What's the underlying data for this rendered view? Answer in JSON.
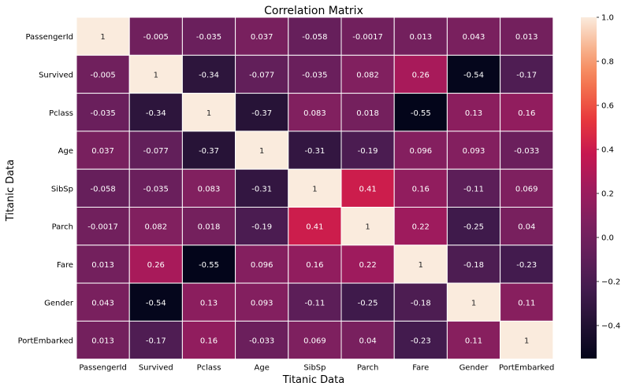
{
  "chart_data": {
    "type": "heatmap",
    "title": "Correlation Matrix",
    "xlabel": "Titanic Data",
    "ylabel": "Titanic Data",
    "x_categories": [
      "PassengerId",
      "Survived",
      "Pclass",
      "Age",
      "SibSp",
      "Parch",
      "Fare",
      "Gender",
      "PortEmbarked"
    ],
    "y_categories": [
      "PassengerId",
      "Survived",
      "Pclass",
      "Age",
      "SibSp",
      "Parch",
      "Fare",
      "Gender",
      "PortEmbarked"
    ],
    "values": [
      [
        1,
        -0.005,
        -0.035,
        0.037,
        -0.058,
        -0.0017,
        0.013,
        0.043,
        0.013
      ],
      [
        -0.005,
        1,
        -0.34,
        -0.077,
        -0.035,
        0.082,
        0.26,
        -0.54,
        -0.17
      ],
      [
        -0.035,
        -0.34,
        1,
        -0.37,
        0.083,
        0.018,
        -0.55,
        0.13,
        0.16
      ],
      [
        0.037,
        -0.077,
        -0.37,
        1,
        -0.31,
        -0.19,
        0.096,
        0.093,
        -0.033
      ],
      [
        -0.058,
        -0.035,
        0.083,
        -0.31,
        1,
        0.41,
        0.16,
        -0.11,
        0.069
      ],
      [
        -0.0017,
        0.082,
        0.018,
        -0.19,
        0.41,
        1,
        0.22,
        -0.25,
        0.04
      ],
      [
        0.013,
        0.26,
        -0.55,
        0.096,
        0.16,
        0.22,
        1,
        -0.18,
        -0.23
      ],
      [
        0.043,
        -0.54,
        0.13,
        0.093,
        -0.11,
        -0.25,
        -0.18,
        1,
        0.11
      ],
      [
        0.013,
        -0.17,
        0.16,
        -0.033,
        0.069,
        0.04,
        -0.23,
        0.11,
        1
      ]
    ],
    "colorbar": {
      "range": [
        -0.55,
        1.0
      ],
      "ticks": [
        1.0,
        0.8,
        0.6,
        0.4,
        0.2,
        0.0,
        -0.2,
        -0.4
      ],
      "tick_labels": [
        "1.0",
        "0.8",
        "0.6",
        "0.4",
        "0.2",
        "0.0",
        "−0.2",
        "−0.4"
      ],
      "colormap": "rocket"
    },
    "cell_border_color": "#ffffff",
    "annotated": true
  }
}
